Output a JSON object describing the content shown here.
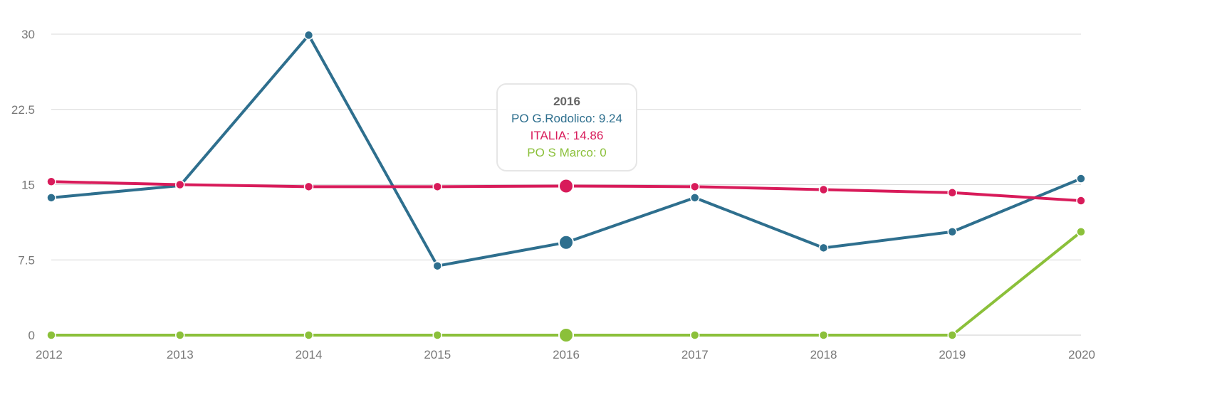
{
  "chart_data": {
    "type": "line",
    "x": [
      "2012",
      "2013",
      "2014",
      "2015",
      "2016",
      "2017",
      "2018",
      "2019",
      "2020"
    ],
    "ylim": [
      0,
      30
    ],
    "yticks": [
      "0",
      "7.5",
      "15",
      "22.5",
      "30"
    ],
    "ytick_values": [
      0,
      7.5,
      15,
      22.5,
      30
    ],
    "grid": true,
    "series": [
      {
        "name": "PO G.Rodolico",
        "color": "#2e6f8e",
        "values": [
          13.7,
          14.9,
          29.9,
          6.9,
          9.24,
          13.7,
          8.7,
          10.3,
          15.6
        ]
      },
      {
        "name": "ITALIA",
        "color": "#d81b5a",
        "values": [
          15.3,
          15.0,
          14.8,
          14.8,
          14.86,
          14.8,
          14.5,
          14.2,
          13.4
        ]
      },
      {
        "name": "PO S Marco",
        "color": "#8bc03a",
        "values": [
          0,
          0,
          0,
          0,
          0,
          0,
          0,
          0,
          10.3
        ]
      }
    ],
    "highlighted_index": 4
  },
  "tooltip": {
    "title": "2016",
    "lines": [
      "PO G.Rodolico: 9.24",
      "ITALIA: 14.86",
      "PO S Marco: 0"
    ]
  }
}
